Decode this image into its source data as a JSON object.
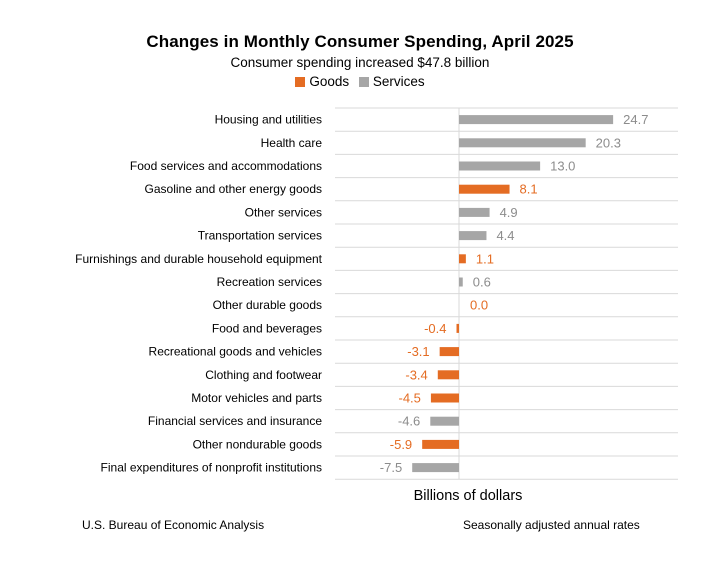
{
  "chart_data": {
    "type": "bar",
    "orientation": "horizontal",
    "title": "Changes in Monthly Consumer Spending, April 2025",
    "subtitle": "Consumer spending increased $47.8 billion",
    "xlabel": "Billions of dollars",
    "ylabel": "",
    "xlim": [
      -10,
      30
    ],
    "legend_position": "top-center",
    "legend": [
      {
        "name": "Goods",
        "color": "#e46c23"
      },
      {
        "name": "Services",
        "color": "#a6a6a6"
      }
    ],
    "categories": [
      "Housing and utilities",
      "Health care",
      "Food services and accommodations",
      "Gasoline and other energy goods",
      "Other services",
      "Transportation services",
      "Furnishings and durable household equipment",
      "Recreation services",
      "Other durable goods",
      "Food and beverages",
      "Recreational goods and vehicles",
      "Clothing and footwear",
      "Motor vehicles and parts",
      "Financial services and insurance",
      "Other nondurable goods",
      "Final expenditures of nonprofit institutions"
    ],
    "values": [
      24.7,
      20.3,
      13.0,
      8.1,
      4.9,
      4.4,
      1.1,
      0.6,
      0.0,
      -0.4,
      -3.1,
      -3.4,
      -4.5,
      -4.6,
      -5.9,
      -7.5
    ],
    "labels": [
      "24.7",
      "20.3",
      "13.0",
      "8.1",
      "4.9",
      "4.4",
      "1.1",
      "0.6",
      "0.0",
      "-0.4",
      "-3.1",
      "-3.4",
      "-4.5",
      "-4.6",
      "-5.9",
      "-7.5"
    ],
    "series_type": [
      "Services",
      "Services",
      "Services",
      "Goods",
      "Services",
      "Services",
      "Goods",
      "Services",
      "Goods",
      "Goods",
      "Goods",
      "Goods",
      "Goods",
      "Services",
      "Goods",
      "Services"
    ],
    "colors": {
      "goods": "#e46c23",
      "services": "#a6a6a6",
      "services_label": "#8c8c8c",
      "grid": "#d9d9d9"
    }
  },
  "footer": {
    "source": "U.S. Bureau of Economic Analysis",
    "note": "Seasonally adjusted annual rates"
  }
}
